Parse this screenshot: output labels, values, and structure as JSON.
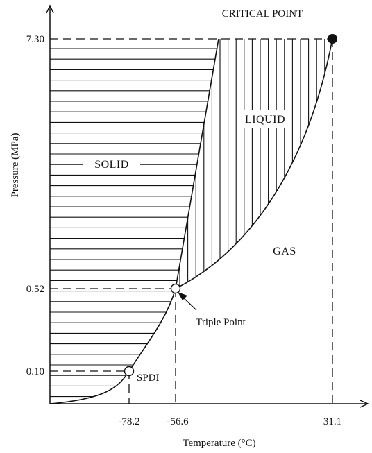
{
  "y_axis": {
    "title": "Pressure (MPa)",
    "ticks": [
      "7.30",
      "0.52",
      "0.10"
    ]
  },
  "x_axis": {
    "title": "Temperature (°C)",
    "ticks": [
      "-78.2",
      "-56.6",
      "31.1"
    ]
  },
  "regions": {
    "solid": "SOLID",
    "liquid": "LIQUID",
    "gas": "GAS"
  },
  "points": {
    "critical": {
      "label": "CRITICAL POINT",
      "temperature": "31.1",
      "pressure": "7.30"
    },
    "triple": {
      "label": "Triple Point",
      "temperature": "-56.6",
      "pressure": "0.52"
    },
    "sublimation": {
      "label": "SPDI",
      "temperature": "-78.2",
      "pressure": "0.10"
    }
  },
  "colors": {
    "ink": "#111111",
    "background": "#ffffff"
  }
}
